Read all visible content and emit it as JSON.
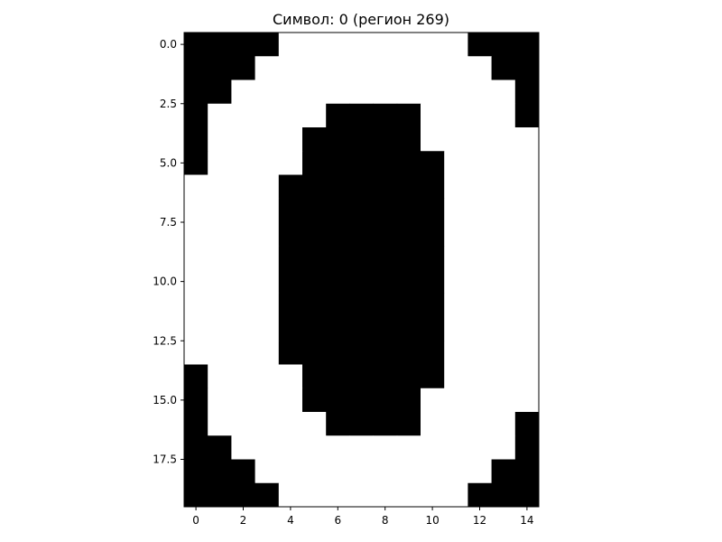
{
  "chart_data": {
    "type": "heatmap",
    "title": "Символ: 0 (регион 269)",
    "colormap": "gray",
    "value_colors": {
      "0": "#000000",
      "1": "#ffffff"
    },
    "xlim": [
      -0.5,
      14.5
    ],
    "ylim": [
      19.5,
      -0.5
    ],
    "x_ticks": [
      0,
      2,
      4,
      6,
      8,
      10,
      12,
      14
    ],
    "x_tick_labels": [
      "0",
      "2",
      "4",
      "6",
      "8",
      "10",
      "12",
      "14"
    ],
    "y_ticks": [
      0.0,
      2.5,
      5.0,
      7.5,
      10.0,
      12.5,
      15.0,
      17.5
    ],
    "y_tick_labels": [
      "0.0",
      "2.5",
      "5.0",
      "7.5",
      "10.0",
      "12.5",
      "15.0",
      "17.5"
    ],
    "grid": [
      [
        0,
        0,
        0,
        0,
        1,
        1,
        1,
        1,
        1,
        1,
        1,
        1,
        0,
        0,
        0
      ],
      [
        0,
        0,
        0,
        1,
        1,
        1,
        1,
        1,
        1,
        1,
        1,
        1,
        1,
        0,
        0
      ],
      [
        0,
        0,
        1,
        1,
        1,
        1,
        1,
        1,
        1,
        1,
        1,
        1,
        1,
        1,
        0
      ],
      [
        0,
        1,
        1,
        1,
        1,
        1,
        0,
        0,
        0,
        0,
        1,
        1,
        1,
        1,
        0
      ],
      [
        0,
        1,
        1,
        1,
        1,
        0,
        0,
        0,
        0,
        0,
        1,
        1,
        1,
        1,
        1
      ],
      [
        0,
        1,
        1,
        1,
        1,
        0,
        0,
        0,
        0,
        0,
        0,
        1,
        1,
        1,
        1
      ],
      [
        1,
        1,
        1,
        1,
        0,
        0,
        0,
        0,
        0,
        0,
        0,
        1,
        1,
        1,
        1
      ],
      [
        1,
        1,
        1,
        1,
        0,
        0,
        0,
        0,
        0,
        0,
        0,
        1,
        1,
        1,
        1
      ],
      [
        1,
        1,
        1,
        1,
        0,
        0,
        0,
        0,
        0,
        0,
        0,
        1,
        1,
        1,
        1
      ],
      [
        1,
        1,
        1,
        1,
        0,
        0,
        0,
        0,
        0,
        0,
        0,
        1,
        1,
        1,
        1
      ],
      [
        1,
        1,
        1,
        1,
        0,
        0,
        0,
        0,
        0,
        0,
        0,
        1,
        1,
        1,
        1
      ],
      [
        1,
        1,
        1,
        1,
        0,
        0,
        0,
        0,
        0,
        0,
        0,
        1,
        1,
        1,
        1
      ],
      [
        1,
        1,
        1,
        1,
        0,
        0,
        0,
        0,
        0,
        0,
        0,
        1,
        1,
        1,
        1
      ],
      [
        1,
        1,
        1,
        1,
        0,
        0,
        0,
        0,
        0,
        0,
        0,
        1,
        1,
        1,
        1
      ],
      [
        0,
        1,
        1,
        1,
        1,
        0,
        0,
        0,
        0,
        0,
        0,
        1,
        1,
        1,
        1
      ],
      [
        0,
        1,
        1,
        1,
        1,
        0,
        0,
        0,
        0,
        0,
        1,
        1,
        1,
        1,
        1
      ],
      [
        0,
        1,
        1,
        1,
        1,
        1,
        0,
        0,
        0,
        0,
        1,
        1,
        1,
        1,
        0
      ],
      [
        0,
        0,
        1,
        1,
        1,
        1,
        1,
        1,
        1,
        1,
        1,
        1,
        1,
        1,
        0
      ],
      [
        0,
        0,
        0,
        1,
        1,
        1,
        1,
        1,
        1,
        1,
        1,
        1,
        1,
        0,
        0
      ],
      [
        0,
        0,
        0,
        0,
        1,
        1,
        1,
        1,
        1,
        1,
        1,
        1,
        0,
        0,
        0
      ]
    ]
  }
}
